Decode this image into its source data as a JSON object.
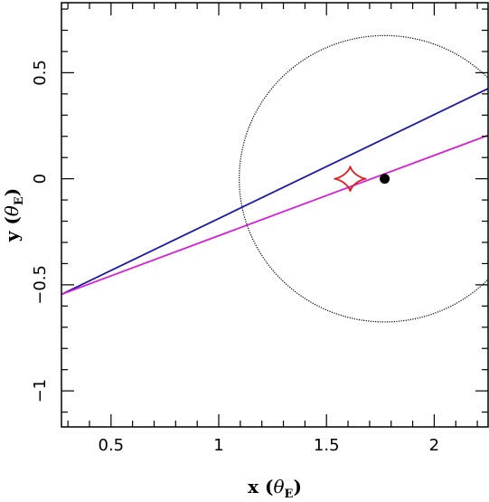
{
  "chart_data": {
    "type": "line",
    "xlabel": "x (θ_E)",
    "ylabel": "y (θ_E)",
    "xlabel_main": "x",
    "ylabel_main": "y",
    "unit_symbol": "θ",
    "unit_subscript": "E",
    "xlim": [
      0.27,
      2.25
    ],
    "ylim": [
      -1.17,
      0.83
    ],
    "x_ticks": [
      0.5,
      1,
      1.5,
      2
    ],
    "x_tick_labels": [
      "0.5",
      "1",
      "1.5",
      "2"
    ],
    "y_ticks": [
      -1,
      -0.5,
      0,
      0.5
    ],
    "y_tick_labels": [
      "−1",
      "−0.5",
      "0",
      "0.5"
    ],
    "x_minor_step": 0.1,
    "y_minor_step": 0.1,
    "grid": false,
    "legend": "none",
    "series": [
      {
        "kind": "circle",
        "center": [
          1.77,
          0
        ],
        "radius": 0.675,
        "color": "#000000",
        "style": "dotted"
      },
      {
        "kind": "line",
        "points": [
          [
            0.27,
            -0.545
          ],
          [
            2.25,
            0.425
          ]
        ],
        "color": "#1a1aa6"
      },
      {
        "kind": "line",
        "points": [
          [
            0.27,
            -0.545
          ],
          [
            2.25,
            0.205
          ]
        ],
        "color": "#d61fd6"
      },
      {
        "kind": "astroid",
        "center": [
          1.61,
          0
        ],
        "rx": 0.075,
        "ry": 0.06,
        "color": "#e31a1a"
      },
      {
        "kind": "point",
        "x": 1.77,
        "y": 0,
        "color": "#000000"
      }
    ]
  }
}
